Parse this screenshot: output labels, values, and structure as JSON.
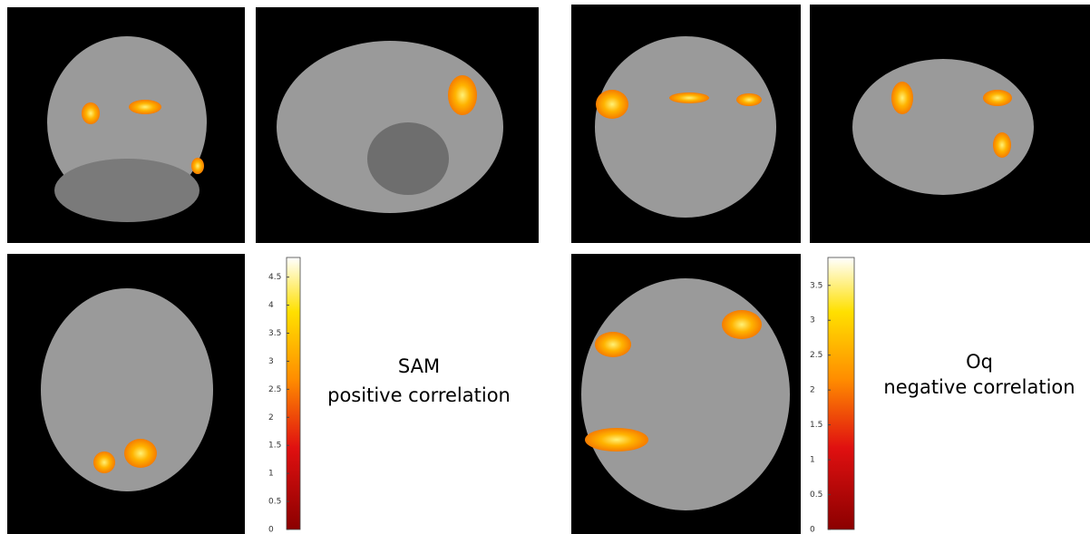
{
  "panels": [
    {
      "label_lines": [
        "SAM",
        "positive correlation"
      ],
      "colorbar": {
        "range": [
          0,
          4.85
        ],
        "ticks": [
          0,
          0.5,
          1,
          1.5,
          2,
          2.5,
          3,
          3.5,
          4,
          4.5
        ]
      }
    },
    {
      "label_lines": [
        "Oq",
        "negative correlation"
      ],
      "colorbar": {
        "range": [
          0,
          3.9
        ],
        "ticks": [
          0,
          0.5,
          1,
          1.5,
          2,
          2.5,
          3,
          3.5
        ]
      }
    }
  ]
}
